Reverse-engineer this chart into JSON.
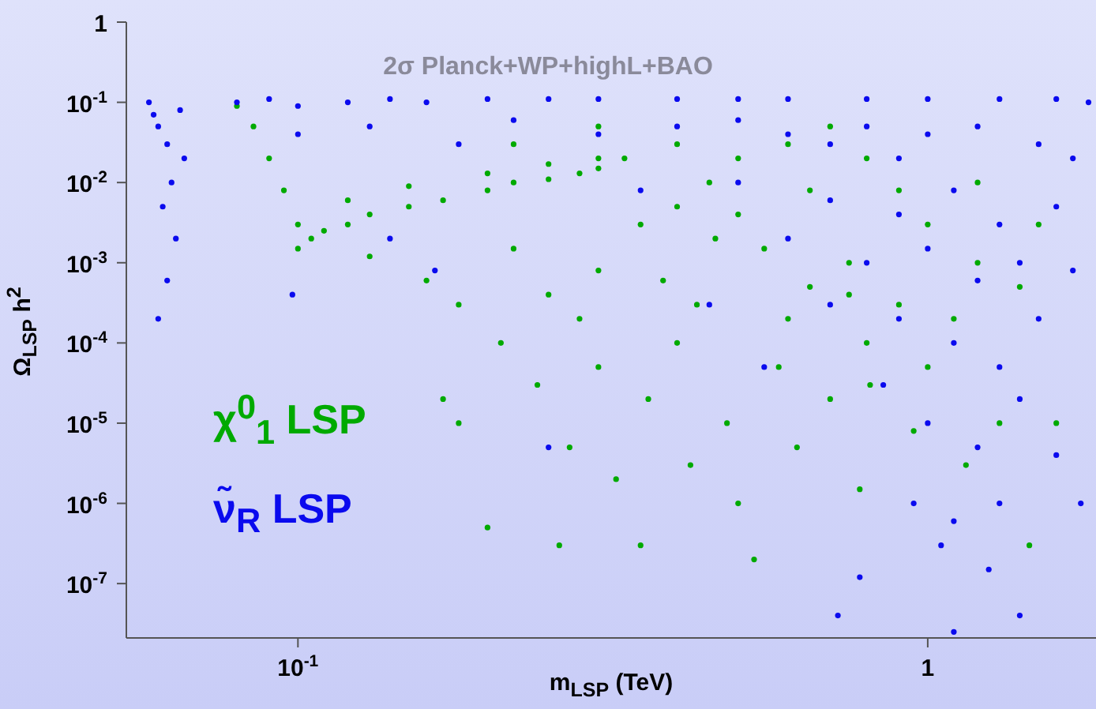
{
  "chart_data": {
    "type": "scatter",
    "xlabel": "m$_{LSP}$ (TeV)",
    "ylabel": "Ω$_{LSP}$ h$^{2}$",
    "log": "xy",
    "marker": "circle",
    "xlim": [
      0.0534,
      1.85
    ],
    "xticks": [
      {
        "value": 0.1,
        "label": "10$^{-1}$"
      },
      1
    ],
    "ylim": [
      2.1e-08,
      1
    ],
    "yticks": [
      1,
      {
        "value": 0.1,
        "label": "10$^{-1}$"
      },
      {
        "value": 0.01,
        "label": "10$^{-2}$"
      },
      {
        "value": 0.001,
        "label": "10$^{-3}$"
      },
      {
        "value": 0.0001,
        "label": "10$^{-4}$"
      },
      {
        "value": 1e-05,
        "label": "10$^{-5}$"
      },
      {
        "value": 1e-06,
        "label": "10$^{-6}$"
      },
      {
        "value": 1e-07,
        "label": "10$^{-7}$"
      }
    ],
    "annotations": [
      "2σ Planck+WP+highL+BAO"
    ],
    "series": [
      {
        "name": "χ$^{0}$$_{1}$ LSP",
        "color": "#00aa00",
        "x": [
          0.1,
          0.1,
          0.105,
          0.11,
          0.12,
          0.13,
          0.15,
          0.17,
          0.2,
          0.22,
          0.25,
          0.28,
          0.3,
          0.33,
          0.12,
          0.15,
          0.2,
          0.25,
          0.3,
          0.09,
          0.085,
          0.08,
          0.095,
          0.13,
          0.16,
          0.18,
          0.22,
          0.25,
          0.3,
          0.35,
          0.4,
          0.45,
          0.5,
          0.6,
          0.7,
          0.8,
          0.9,
          1.0,
          1.2,
          1.4,
          0.17,
          0.18,
          0.2,
          0.21,
          0.24,
          0.26,
          0.27,
          0.3,
          0.32,
          0.35,
          0.36,
          0.4,
          0.42,
          0.43,
          0.48,
          0.5,
          0.53,
          0.58,
          0.6,
          0.62,
          0.65,
          0.7,
          0.75,
          0.78,
          0.8,
          0.81,
          0.9,
          0.95,
          1.0,
          1.1,
          1.15,
          1.3,
          1.45,
          1.6,
          0.22,
          0.3,
          0.4,
          0.5,
          0.55,
          0.65,
          0.75,
          1.2,
          1.5,
          0.28,
          0.38,
          0.46
        ],
        "values": [
          0.0015,
          0.003,
          0.002,
          0.0025,
          0.003,
          0.004,
          0.005,
          0.006,
          0.008,
          0.01,
          0.011,
          0.013,
          0.015,
          0.02,
          0.006,
          0.009,
          0.013,
          0.017,
          0.02,
          0.02,
          0.05,
          0.09,
          0.008,
          0.0012,
          0.0006,
          0.0003,
          0.0015,
          0.0004,
          0.0008,
          0.003,
          0.005,
          0.01,
          0.02,
          0.03,
          0.05,
          0.02,
          0.008,
          0.003,
          0.001,
          0.0005,
          2e-05,
          1e-05,
          5e-07,
          0.0001,
          3e-05,
          3e-07,
          5e-06,
          5e-05,
          2e-06,
          3e-07,
          2e-05,
          0.0001,
          3e-06,
          0.0003,
          1e-05,
          1e-06,
          2e-07,
          5e-05,
          0.0002,
          5e-06,
          0.0005,
          2e-05,
          0.001,
          1.5e-06,
          0.0001,
          3e-05,
          0.0003,
          8e-06,
          5e-05,
          0.0002,
          3e-06,
          1e-05,
          3e-07,
          1e-05,
          0.03,
          0.05,
          0.03,
          0.004,
          0.0015,
          0.008,
          0.0004,
          0.01,
          0.003,
          0.0002,
          0.0006,
          0.002
        ]
      },
      {
        "name": "ν̃$_{R}$ LSP",
        "color": "#0a0aee",
        "x": [
          0.058,
          0.06,
          0.062,
          0.063,
          0.061,
          0.064,
          0.062,
          0.06,
          0.065,
          0.066,
          0.059,
          0.08,
          0.09,
          0.1,
          0.12,
          0.14,
          0.16,
          0.2,
          0.25,
          0.3,
          0.4,
          0.5,
          0.6,
          0.8,
          1.0,
          1.3,
          1.6,
          1.8,
          0.1,
          0.13,
          0.18,
          0.22,
          0.3,
          0.4,
          0.5,
          0.6,
          0.7,
          0.8,
          0.9,
          1.0,
          1.2,
          1.5,
          1.7,
          0.35,
          0.5,
          0.7,
          0.9,
          1.1,
          1.3,
          1.6,
          0.6,
          0.8,
          1.0,
          1.2,
          1.4,
          1.7,
          0.7,
          0.9,
          1.1,
          1.3,
          1.5,
          0.85,
          1.0,
          1.2,
          1.4,
          1.6,
          0.95,
          1.1,
          1.3,
          1.05,
          1.25,
          0.72,
          0.78,
          1.4,
          1.1,
          0.098,
          0.165,
          0.25,
          0.45,
          0.55,
          1.75,
          0.14
        ],
        "values": [
          0.1,
          0.05,
          0.03,
          0.01,
          0.005,
          0.002,
          0.0006,
          0.0002,
          0.08,
          0.02,
          0.07,
          0.1,
          0.11,
          0.09,
          0.1,
          0.11,
          0.1,
          0.11,
          0.11,
          0.11,
          0.11,
          0.11,
          0.11,
          0.11,
          0.11,
          0.11,
          0.11,
          0.1,
          0.04,
          0.05,
          0.03,
          0.06,
          0.04,
          0.05,
          0.06,
          0.04,
          0.03,
          0.05,
          0.02,
          0.04,
          0.05,
          0.03,
          0.02,
          0.008,
          0.01,
          0.006,
          0.004,
          0.008,
          0.003,
          0.005,
          0.002,
          0.001,
          0.0015,
          0.0006,
          0.001,
          0.0008,
          0.0003,
          0.0002,
          0.0001,
          5e-05,
          0.0002,
          3e-05,
          1e-05,
          5e-06,
          2e-05,
          4e-06,
          1e-06,
          6e-07,
          1e-06,
          3e-07,
          1.5e-07,
          4e-08,
          1.2e-07,
          4e-08,
          2.5e-08,
          0.0004,
          0.0008,
          5e-06,
          0.0003,
          5e-05,
          1e-06,
          0.002
        ]
      }
    ]
  }
}
